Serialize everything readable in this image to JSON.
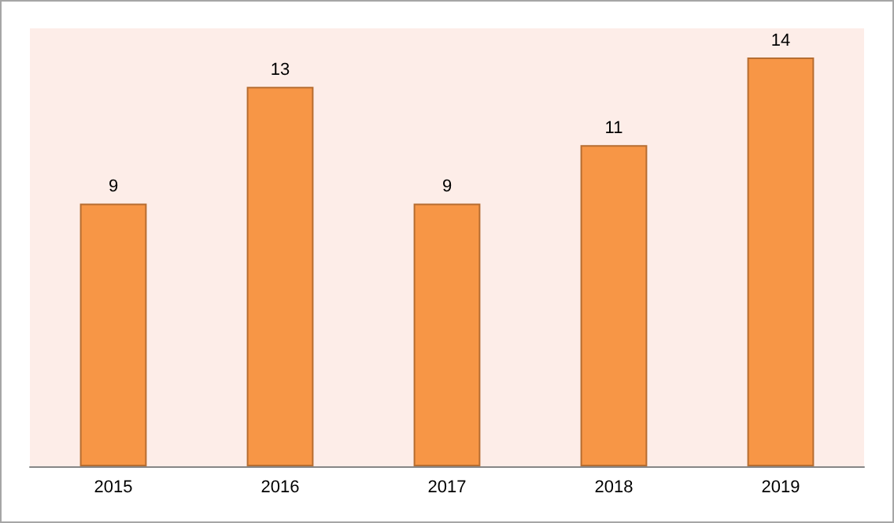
{
  "chart_data": {
    "type": "bar",
    "categories": [
      "2015",
      "2016",
      "2017",
      "2018",
      "2019"
    ],
    "values": [
      9,
      13,
      9,
      11,
      14
    ],
    "color": "#f79646",
    "data_labels": true
  }
}
